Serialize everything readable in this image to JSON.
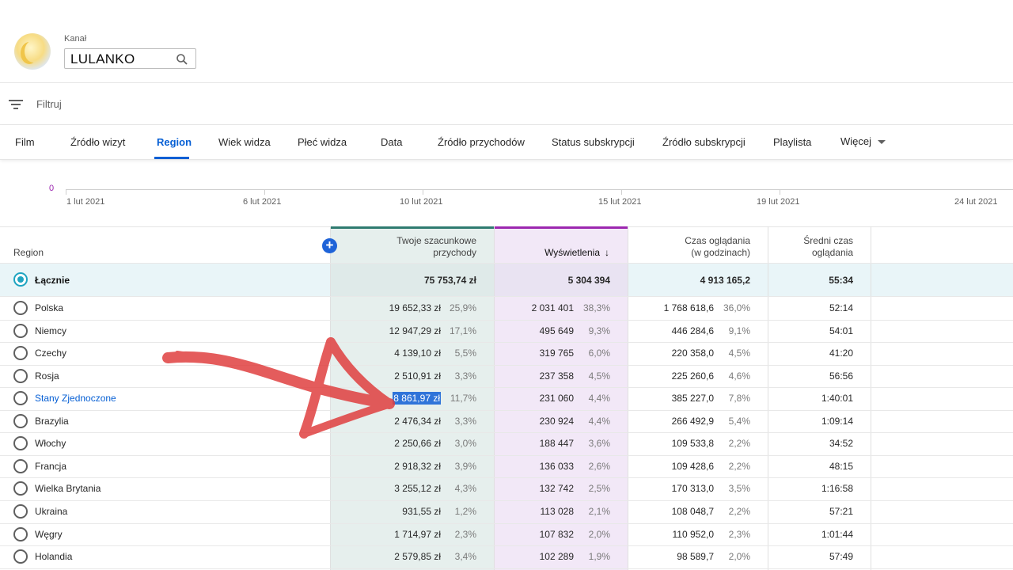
{
  "header": {
    "channel_label": "Kanał",
    "channel_name": "LULANKO"
  },
  "filter": {
    "label": "Filtruj"
  },
  "tabs": [
    {
      "label": "Film"
    },
    {
      "label": "Źródło wizyt"
    },
    {
      "label": "Region",
      "active": true
    },
    {
      "label": "Wiek widza"
    },
    {
      "label": "Płeć widza"
    },
    {
      "label": "Data"
    },
    {
      "label": "Źródło przychodów"
    },
    {
      "label": "Status subskrypcji"
    },
    {
      "label": "Źródło subskrypcji"
    },
    {
      "label": "Playlista"
    },
    {
      "label": "Więcej"
    }
  ],
  "timeline": {
    "zero_label": "0",
    "dates": [
      "1 lut 2021",
      "6 lut 2021",
      "10 lut 2021",
      "15 lut 2021",
      "19 lut 2021",
      "24 lut 2021"
    ]
  },
  "table": {
    "headers": {
      "region": "Region",
      "revenue_line1": "Twoje szacunkowe",
      "revenue_line2": "przychody",
      "views": "Wyświetlenia",
      "watch_line1": "Czas oglądania",
      "watch_line2": "(w godzinach)",
      "avg_line1": "Średni czas",
      "avg_line2": "oglądania"
    },
    "total": {
      "label": "Łącznie",
      "revenue": "75 753,74 zł",
      "views": "5 304 394",
      "watch": "4 913 165,2",
      "avg": "55:34"
    },
    "rows": [
      {
        "region": "Polska",
        "revenue": "19 652,33 zł",
        "revenue_pct": "25,9%",
        "views": "2 031 401",
        "views_pct": "38,3%",
        "watch": "1 768 618,6",
        "watch_pct": "36,0%",
        "avg": "52:14"
      },
      {
        "region": "Niemcy",
        "revenue": "12 947,29 zł",
        "revenue_pct": "17,1%",
        "views": "495 649",
        "views_pct": "9,3%",
        "watch": "446 284,6",
        "watch_pct": "9,1%",
        "avg": "54:01"
      },
      {
        "region": "Czechy",
        "revenue": "4 139,10 zł",
        "revenue_pct": "5,5%",
        "views": "319 765",
        "views_pct": "6,0%",
        "watch": "220 358,0",
        "watch_pct": "4,5%",
        "avg": "41:20"
      },
      {
        "region": "Rosja",
        "revenue": "2 510,91 zł",
        "revenue_pct": "3,3%",
        "views": "237 358",
        "views_pct": "4,5%",
        "watch": "225 260,6",
        "watch_pct": "4,6%",
        "avg": "56:56"
      },
      {
        "region": "Stany Zjednoczone",
        "revenue": "8 861,97 zł",
        "revenue_pct": "11,7%",
        "views": "231 060",
        "views_pct": "4,4%",
        "watch": "385 227,0",
        "watch_pct": "7,8%",
        "avg": "1:40:01",
        "link": true,
        "highlight": true
      },
      {
        "region": "Brazylia",
        "revenue": "2 476,34 zł",
        "revenue_pct": "3,3%",
        "views": "230 924",
        "views_pct": "4,4%",
        "watch": "266 492,9",
        "watch_pct": "5,4%",
        "avg": "1:09:14"
      },
      {
        "region": "Włochy",
        "revenue": "2 250,66 zł",
        "revenue_pct": "3,0%",
        "views": "188 447",
        "views_pct": "3,6%",
        "watch": "109 533,8",
        "watch_pct": "2,2%",
        "avg": "34:52"
      },
      {
        "region": "Francja",
        "revenue": "2 918,32 zł",
        "revenue_pct": "3,9%",
        "views": "136 033",
        "views_pct": "2,6%",
        "watch": "109 428,6",
        "watch_pct": "2,2%",
        "avg": "48:15"
      },
      {
        "region": "Wielka Brytania",
        "revenue": "3 255,12 zł",
        "revenue_pct": "4,3%",
        "views": "132 742",
        "views_pct": "2,5%",
        "watch": "170 313,0",
        "watch_pct": "3,5%",
        "avg": "1:16:58"
      },
      {
        "region": "Ukraina",
        "revenue": "931,55 zł",
        "revenue_pct": "1,2%",
        "views": "113 028",
        "views_pct": "2,1%",
        "watch": "108 048,7",
        "watch_pct": "2,2%",
        "avg": "57:21"
      },
      {
        "region": "Węgry",
        "revenue": "1 714,97 zł",
        "revenue_pct": "2,3%",
        "views": "107 832",
        "views_pct": "2,0%",
        "watch": "110 952,0",
        "watch_pct": "2,3%",
        "avg": "1:01:44"
      },
      {
        "region": "Holandia",
        "revenue": "2 579,85 zł",
        "revenue_pct": "3,4%",
        "views": "102 289",
        "views_pct": "1,9%",
        "watch": "98 589,7",
        "watch_pct": "2,0%",
        "avg": "57:49"
      }
    ]
  },
  "colors": {
    "accent": "#065fd4",
    "revenue_column": "#2f7b70",
    "views_column": "#9c27b0",
    "annotation_arrow": "#e04040"
  },
  "annotation": {
    "icon": "red-arrow-annotation"
  }
}
